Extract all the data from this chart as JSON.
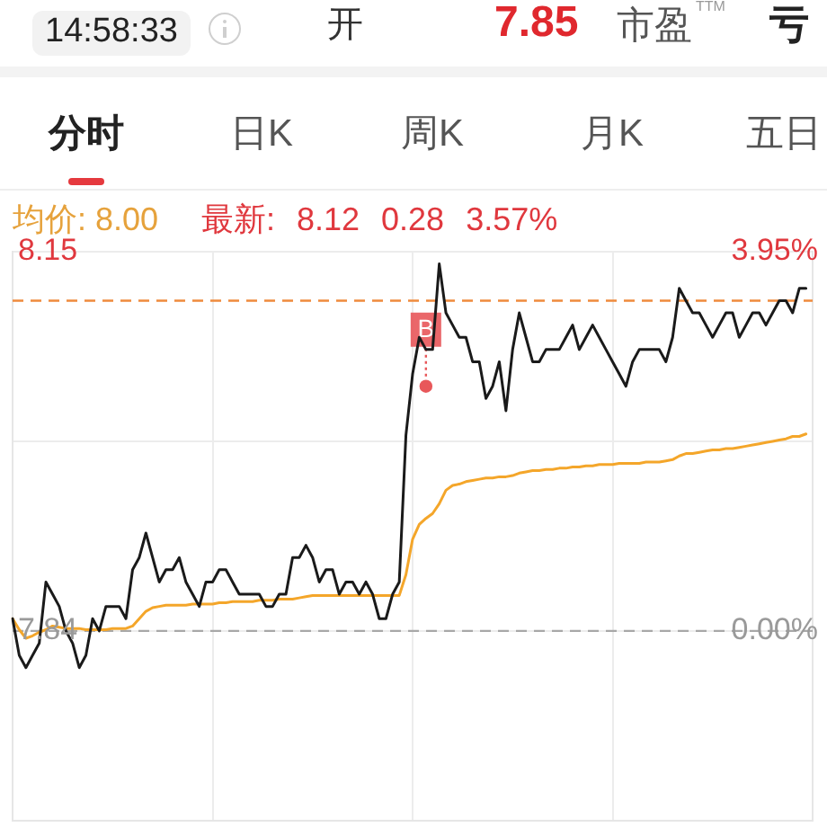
{
  "chart_data": {
    "type": "line",
    "annotations": [
      "14:58:33",
      "开",
      "7.85",
      "市盈$^{TTM}$",
      "亏",
      "分时",
      "日K",
      "周K",
      "月K",
      "五日",
      "均价: 8.00",
      "最新: 8.12 0.28 3.57%"
    ],
    "categories": [
      null,
      null,
      null,
      null,
      null,
      null,
      null,
      null,
      null,
      null,
      null,
      null,
      null,
      null,
      null,
      null,
      null,
      null,
      null,
      null,
      null,
      null,
      null,
      null,
      null,
      null,
      null,
      null,
      null,
      null,
      null,
      null,
      null,
      null,
      null,
      null,
      null,
      null,
      null,
      null,
      null,
      null,
      null,
      null,
      null,
      null,
      null,
      null,
      null,
      null,
      null,
      null,
      null,
      null,
      null,
      null,
      null,
      null,
      null,
      null,
      null,
      null,
      null,
      null,
      null,
      null,
      null,
      null,
      null,
      null,
      null,
      null,
      null,
      null,
      null,
      null,
      null,
      null,
      null,
      null,
      null,
      null,
      null,
      null,
      null,
      null,
      null,
      null,
      null,
      null,
      null,
      null,
      null,
      null,
      null,
      null,
      null,
      null,
      null,
      null,
      null,
      null,
      null,
      null,
      null,
      null,
      null,
      null,
      null,
      null,
      null,
      null,
      null,
      null,
      null,
      null,
      null,
      null,
      null,
      null,
      null
    ],
    "series": [
      {
        "type": "line",
        "color": "#1a1a1a",
        "values": [
          7.85,
          7.82,
          7.81,
          7.82,
          7.83,
          7.88,
          7.87,
          7.86,
          7.84,
          7.83,
          7.81,
          7.82,
          7.85,
          7.84,
          7.86,
          7.86,
          7.86,
          7.85,
          7.89,
          7.9,
          7.92,
          7.9,
          7.88,
          7.89,
          7.89,
          7.9,
          7.88,
          7.87,
          7.86,
          7.88,
          7.88,
          7.89,
          7.89,
          7.88,
          7.87,
          7.87,
          7.87,
          7.87,
          7.86,
          7.86,
          7.87,
          7.87,
          7.9,
          7.9,
          7.91,
          7.9,
          7.88,
          7.89,
          7.89,
          7.87,
          7.88,
          7.88,
          7.87,
          7.88,
          7.87,
          7.85,
          7.85,
          7.87,
          7.88,
          8.0,
          8.05,
          8.08,
          8.07,
          8.07,
          8.14,
          8.1,
          8.09,
          8.08,
          8.08,
          8.06,
          8.06,
          8.03,
          8.04,
          8.06,
          8.02,
          8.07,
          8.1,
          8.08,
          8.06,
          8.06,
          8.07,
          8.07,
          8.07,
          8.08,
          8.09,
          8.07,
          8.08,
          8.09,
          8.08,
          8.07,
          8.06,
          8.05,
          8.04,
          8.06,
          8.07,
          8.07,
          8.07,
          8.07,
          8.06,
          8.08,
          8.12,
          8.11,
          8.1,
          8.1,
          8.09,
          8.08,
          8.09,
          8.1,
          8.1,
          8.08,
          8.09,
          8.1,
          8.1,
          8.09,
          8.1,
          8.11,
          8.11,
          8.1,
          8.12,
          8.12,
          null
        ]
      },
      {
        "type": "line",
        "color": "#f4a62a",
        "values": [
          7.85,
          7.841,
          7.834,
          7.836,
          7.839,
          7.841,
          7.844,
          7.843,
          7.842,
          7.842,
          7.842,
          7.841,
          7.841,
          7.841,
          7.841,
          7.842,
          7.842,
          7.842,
          7.844,
          7.85,
          7.856,
          7.859,
          7.86,
          7.861,
          7.861,
          7.861,
          7.861,
          7.862,
          7.862,
          7.862,
          7.862,
          7.863,
          7.863,
          7.864,
          7.864,
          7.864,
          7.864,
          7.865,
          7.865,
          7.865,
          7.866,
          7.866,
          7.866,
          7.867,
          7.868,
          7.869,
          7.869,
          7.869,
          7.869,
          7.869,
          7.869,
          7.869,
          7.869,
          7.869,
          7.869,
          7.869,
          7.869,
          7.869,
          7.869,
          7.886,
          7.915,
          7.927,
          7.932,
          7.936,
          7.944,
          7.955,
          7.959,
          7.96,
          7.962,
          7.963,
          7.964,
          7.965,
          7.965,
          7.966,
          7.966,
          7.967,
          7.969,
          7.97,
          7.971,
          7.971,
          7.972,
          7.972,
          7.973,
          7.973,
          7.974,
          7.974,
          7.975,
          7.975,
          7.976,
          7.976,
          7.976,
          7.977,
          7.977,
          7.977,
          7.977,
          7.978,
          7.978,
          7.978,
          7.979,
          7.98,
          7.983,
          7.985,
          7.985,
          7.986,
          7.987,
          7.988,
          7.988,
          7.989,
          7.989,
          7.99,
          7.991,
          7.992,
          7.993,
          7.994,
          7.995,
          7.996,
          7.997,
          7.999,
          7.999,
          8.001,
          null
        ]
      },
      {
        "type": "scatter",
        "name": "B",
        "color": "#e8575a",
        "marker": "circle",
        "values": [
          null,
          null,
          null,
          null,
          null,
          null,
          null,
          null,
          null,
          null,
          null,
          null,
          null,
          null,
          null,
          null,
          null,
          null,
          null,
          null,
          null,
          null,
          null,
          null,
          null,
          null,
          null,
          null,
          null,
          null,
          null,
          null,
          null,
          null,
          null,
          null,
          null,
          null,
          null,
          null,
          null,
          null,
          null,
          null,
          null,
          null,
          null,
          null,
          null,
          null,
          null,
          null,
          null,
          null,
          null,
          null,
          null,
          null,
          null,
          null,
          null,
          null,
          8.04,
          null,
          null,
          null,
          null,
          null,
          null,
          null,
          null,
          null,
          null,
          null,
          null,
          null,
          null,
          null,
          null,
          null,
          null,
          null,
          null,
          null,
          null,
          null,
          null,
          null,
          null,
          null,
          null,
          null,
          null,
          null,
          null,
          null,
          null,
          null,
          null,
          null,
          null,
          null,
          null,
          null,
          null,
          null,
          null,
          null,
          null,
          null,
          null,
          null,
          null,
          null,
          null,
          null,
          null,
          null,
          null,
          null,
          null
        ]
      }
    ],
    "ylim": [
      7.685,
      8.15
    ],
    "yticks": [
      8.15,
      {
        "value": 7.995,
        "label": null
      },
      7.84
    ],
    "y2lim": [
      -1.98,
      3.95
    ],
    "y2ticks": [
      {
        "value": 3.95,
        "label": "3.95%"
      },
      {
        "value": 0,
        "label": "0.00%"
      }
    ],
    "ref_lines": [
      {
        "axis": "y",
        "value": 8.11,
        "color": "#ef8b3d",
        "line_style": "dashed"
      },
      {
        "axis": "y",
        "value": 7.84,
        "color": "#a8a8a8",
        "line_style": "dashed"
      }
    ],
    "grid": true,
    "legend": false,
    "marker": "none",
    "tick_labels": "y"
  }
}
